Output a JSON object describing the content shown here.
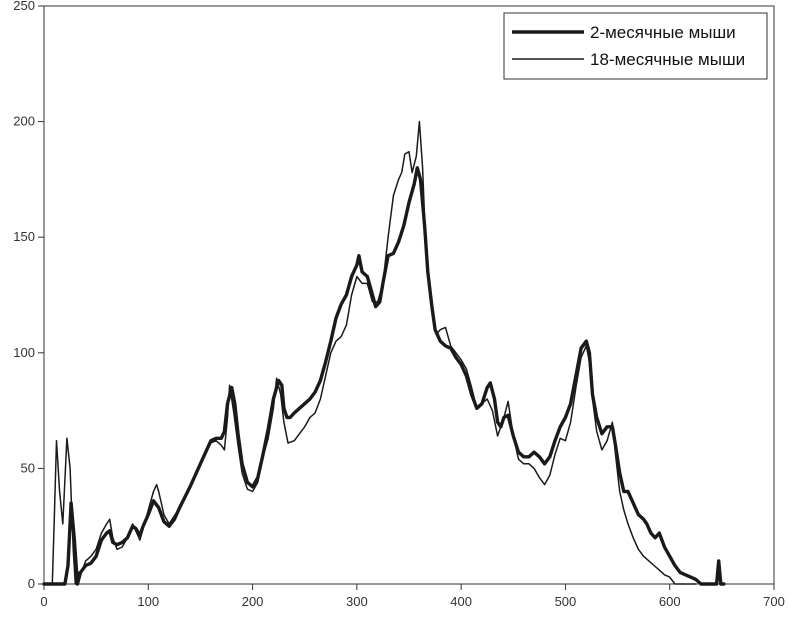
{
  "chart_data": {
    "type": "line",
    "xlim": [
      0,
      700
    ],
    "ylim": [
      0,
      250
    ],
    "xticks": [
      "0",
      "100",
      "200",
      "300",
      "400",
      "500",
      "600",
      "700"
    ],
    "yticks": [
      "0",
      "50",
      "100",
      "150",
      "200",
      "250"
    ],
    "grid": false,
    "legend_position": "top-right",
    "series": [
      {
        "name": "2-месячные мыши",
        "color": "#1a1a1a",
        "points": [
          [
            0,
            0
          ],
          [
            5,
            0
          ],
          [
            10,
            0
          ],
          [
            15,
            0
          ],
          [
            18,
            0
          ],
          [
            20,
            0
          ],
          [
            23,
            8
          ],
          [
            26,
            35
          ],
          [
            29,
            20
          ],
          [
            32,
            0
          ],
          [
            35,
            5
          ],
          [
            40,
            8
          ],
          [
            45,
            9
          ],
          [
            50,
            12
          ],
          [
            55,
            19
          ],
          [
            60,
            22
          ],
          [
            63,
            23
          ],
          [
            66,
            18
          ],
          [
            70,
            17
          ],
          [
            75,
            18
          ],
          [
            80,
            20
          ],
          [
            85,
            25
          ],
          [
            88,
            24
          ],
          [
            92,
            21
          ],
          [
            95,
            25
          ],
          [
            100,
            30
          ],
          [
            105,
            36
          ],
          [
            110,
            33
          ],
          [
            115,
            27
          ],
          [
            120,
            25
          ],
          [
            125,
            28
          ],
          [
            130,
            33
          ],
          [
            140,
            42
          ],
          [
            150,
            52
          ],
          [
            160,
            62
          ],
          [
            165,
            63
          ],
          [
            170,
            63
          ],
          [
            173,
            66
          ],
          [
            176,
            78
          ],
          [
            180,
            85
          ],
          [
            183,
            78
          ],
          [
            186,
            65
          ],
          [
            190,
            52
          ],
          [
            195,
            44
          ],
          [
            200,
            42
          ],
          [
            205,
            46
          ],
          [
            210,
            56
          ],
          [
            215,
            67
          ],
          [
            220,
            80
          ],
          [
            225,
            88
          ],
          [
            228,
            86
          ],
          [
            230,
            76
          ],
          [
            233,
            72
          ],
          [
            236,
            72
          ],
          [
            240,
            74
          ],
          [
            245,
            76
          ],
          [
            250,
            78
          ],
          [
            255,
            80
          ],
          [
            260,
            83
          ],
          [
            265,
            88
          ],
          [
            270,
            96
          ],
          [
            275,
            105
          ],
          [
            280,
            115
          ],
          [
            285,
            121
          ],
          [
            290,
            125
          ],
          [
            295,
            133
          ],
          [
            300,
            138
          ],
          [
            302,
            142
          ],
          [
            305,
            135
          ],
          [
            310,
            133
          ],
          [
            315,
            125
          ],
          [
            318,
            120
          ],
          [
            322,
            122
          ],
          [
            325,
            130
          ],
          [
            330,
            142
          ],
          [
            335,
            143
          ],
          [
            340,
            148
          ],
          [
            345,
            155
          ],
          [
            350,
            165
          ],
          [
            355,
            173
          ],
          [
            358,
            180
          ],
          [
            361,
            175
          ],
          [
            365,
            155
          ],
          [
            368,
            135
          ],
          [
            372,
            120
          ],
          [
            375,
            110
          ],
          [
            380,
            105
          ],
          [
            385,
            103
          ],
          [
            390,
            102
          ],
          [
            395,
            98
          ],
          [
            400,
            95
          ],
          [
            405,
            90
          ],
          [
            410,
            82
          ],
          [
            415,
            76
          ],
          [
            420,
            78
          ],
          [
            425,
            85
          ],
          [
            428,
            87
          ],
          [
            432,
            80
          ],
          [
            435,
            70
          ],
          [
            438,
            68
          ],
          [
            441,
            72
          ],
          [
            445,
            73
          ],
          [
            450,
            64
          ],
          [
            455,
            57
          ],
          [
            460,
            55
          ],
          [
            465,
            55
          ],
          [
            470,
            57
          ],
          [
            475,
            55
          ],
          [
            480,
            52
          ],
          [
            485,
            55
          ],
          [
            490,
            62
          ],
          [
            495,
            68
          ],
          [
            500,
            72
          ],
          [
            505,
            78
          ],
          [
            510,
            90
          ],
          [
            515,
            102
          ],
          [
            520,
            105
          ],
          [
            523,
            100
          ],
          [
            526,
            82
          ],
          [
            530,
            72
          ],
          [
            535,
            65
          ],
          [
            540,
            68
          ],
          [
            545,
            68
          ],
          [
            548,
            60
          ],
          [
            552,
            48
          ],
          [
            556,
            40
          ],
          [
            560,
            40
          ],
          [
            565,
            35
          ],
          [
            570,
            30
          ],
          [
            575,
            28
          ],
          [
            578,
            26
          ],
          [
            582,
            22
          ],
          [
            586,
            20
          ],
          [
            590,
            22
          ],
          [
            595,
            16
          ],
          [
            600,
            12
          ],
          [
            605,
            8
          ],
          [
            610,
            5
          ],
          [
            615,
            4
          ],
          [
            620,
            3
          ],
          [
            625,
            2
          ],
          [
            630,
            0
          ],
          [
            640,
            0
          ],
          [
            645,
            0
          ],
          [
            647,
            10
          ],
          [
            649,
            0
          ],
          [
            652,
            0
          ]
        ]
      },
      {
        "name": "18-месячные мыши",
        "color": "#1a1a1a",
        "points": [
          [
            0,
            0
          ],
          [
            5,
            0
          ],
          [
            8,
            0
          ],
          [
            10,
            30
          ],
          [
            12,
            62
          ],
          [
            15,
            40
          ],
          [
            18,
            26
          ],
          [
            20,
            45
          ],
          [
            22,
            63
          ],
          [
            25,
            50
          ],
          [
            28,
            15
          ],
          [
            30,
            0
          ],
          [
            33,
            5
          ],
          [
            36,
            5
          ],
          [
            40,
            10
          ],
          [
            45,
            12
          ],
          [
            50,
            15
          ],
          [
            55,
            22
          ],
          [
            60,
            26
          ],
          [
            63,
            28
          ],
          [
            66,
            20
          ],
          [
            70,
            15
          ],
          [
            75,
            16
          ],
          [
            80,
            20
          ],
          [
            85,
            26
          ],
          [
            88,
            23
          ],
          [
            92,
            19
          ],
          [
            95,
            24
          ],
          [
            100,
            32
          ],
          [
            105,
            40
          ],
          [
            108,
            43
          ],
          [
            110,
            40
          ],
          [
            115,
            30
          ],
          [
            120,
            26
          ],
          [
            130,
            33
          ],
          [
            140,
            42
          ],
          [
            150,
            52
          ],
          [
            160,
            61
          ],
          [
            165,
            62
          ],
          [
            170,
            60
          ],
          [
            173,
            58
          ],
          [
            176,
            72
          ],
          [
            178,
            86
          ],
          [
            182,
            74
          ],
          [
            186,
            60
          ],
          [
            190,
            48
          ],
          [
            195,
            41
          ],
          [
            200,
            40
          ],
          [
            205,
            44
          ],
          [
            210,
            55
          ],
          [
            215,
            63
          ],
          [
            220,
            76
          ],
          [
            223,
            89
          ],
          [
            227,
            82
          ],
          [
            230,
            70
          ],
          [
            234,
            61
          ],
          [
            240,
            62
          ],
          [
            245,
            65
          ],
          [
            250,
            68
          ],
          [
            255,
            72
          ],
          [
            260,
            74
          ],
          [
            265,
            80
          ],
          [
            270,
            90
          ],
          [
            275,
            100
          ],
          [
            280,
            105
          ],
          [
            285,
            107
          ],
          [
            290,
            112
          ],
          [
            295,
            125
          ],
          [
            300,
            133
          ],
          [
            305,
            130
          ],
          [
            310,
            130
          ],
          [
            315,
            122
          ],
          [
            320,
            122
          ],
          [
            325,
            130
          ],
          [
            330,
            150
          ],
          [
            335,
            168
          ],
          [
            340,
            175
          ],
          [
            343,
            178
          ],
          [
            346,
            186
          ],
          [
            350,
            187
          ],
          [
            353,
            178
          ],
          [
            357,
            185
          ],
          [
            360,
            200
          ],
          [
            363,
            180
          ],
          [
            365,
            158
          ],
          [
            368,
            138
          ],
          [
            372,
            118
          ],
          [
            376,
            108
          ],
          [
            380,
            110
          ],
          [
            385,
            111
          ],
          [
            390,
            103
          ],
          [
            395,
            100
          ],
          [
            400,
            97
          ],
          [
            405,
            93
          ],
          [
            410,
            85
          ],
          [
            415,
            76
          ],
          [
            420,
            78
          ],
          [
            425,
            80
          ],
          [
            430,
            75
          ],
          [
            435,
            64
          ],
          [
            438,
            68
          ],
          [
            441,
            72
          ],
          [
            445,
            79
          ],
          [
            450,
            64
          ],
          [
            455,
            54
          ],
          [
            460,
            52
          ],
          [
            465,
            52
          ],
          [
            470,
            50
          ],
          [
            475,
            46
          ],
          [
            480,
            43
          ],
          [
            485,
            47
          ],
          [
            490,
            56
          ],
          [
            495,
            63
          ],
          [
            500,
            62
          ],
          [
            505,
            70
          ],
          [
            510,
            85
          ],
          [
            515,
            98
          ],
          [
            520,
            103
          ],
          [
            523,
            96
          ],
          [
            526,
            80
          ],
          [
            530,
            66
          ],
          [
            535,
            58
          ],
          [
            540,
            62
          ],
          [
            545,
            70
          ],
          [
            548,
            56
          ],
          [
            552,
            40
          ],
          [
            556,
            32
          ],
          [
            560,
            26
          ],
          [
            565,
            20
          ],
          [
            570,
            15
          ],
          [
            575,
            12
          ],
          [
            580,
            10
          ],
          [
            585,
            8
          ],
          [
            590,
            6
          ],
          [
            595,
            4
          ],
          [
            600,
            3
          ],
          [
            605,
            0
          ],
          [
            610,
            0
          ],
          [
            615,
            0
          ],
          [
            620,
            0
          ],
          [
            625,
            0
          ]
        ]
      }
    ]
  }
}
